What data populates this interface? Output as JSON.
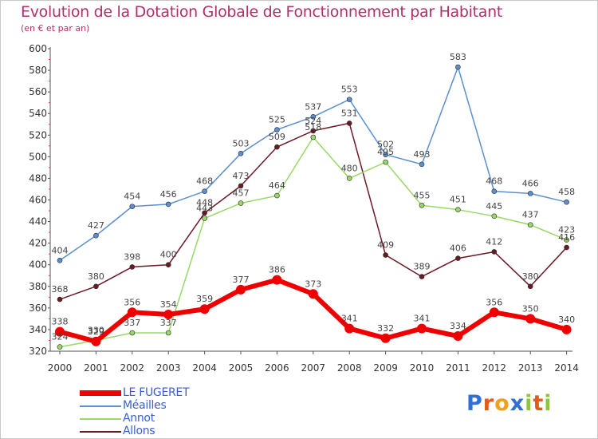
{
  "chart_data": {
    "type": "line",
    "title": "Evolution de la Dotation Globale de Fonctionnement par Habitant",
    "subtitle": "(en € et par an)",
    "x": [
      "2000",
      "2001",
      "2002",
      "2003",
      "2004",
      "2005",
      "2006",
      "2007",
      "2008",
      "2009",
      "2010",
      "2011",
      "2012",
      "2013",
      "2014"
    ],
    "yticks": [
      320,
      340,
      360,
      380,
      400,
      420,
      440,
      460,
      480,
      500,
      520,
      540,
      560,
      580,
      600
    ],
    "ylim": [
      320,
      600
    ],
    "grid": false,
    "legend_position": "bottom-left",
    "series": [
      {
        "name": "Allons",
        "color": "#6b1a24",
        "values": [
          368,
          380,
          398,
          400,
          448,
          473,
          509,
          524,
          531,
          409,
          389,
          406,
          412,
          380,
          416
        ],
        "labels": [
          "368",
          "380",
          "398",
          "400",
          "448",
          "473",
          "509",
          "524",
          "531",
          "409",
          "389",
          "406",
          "412",
          "380",
          "416"
        ]
      },
      {
        "name": "Annot",
        "color": "#99d866",
        "values": [
          324,
          330,
          337,
          337,
          443,
          457,
          464,
          518,
          480,
          495,
          455,
          451,
          445,
          437,
          423
        ],
        "labels": [
          "324",
          "330",
          "337",
          "337",
          "443",
          "457",
          "464",
          "518",
          "480",
          "495",
          "455",
          "451",
          "445",
          "437",
          "423"
        ]
      },
      {
        "name": "Méailles",
        "color": "#5b8fcf",
        "values": [
          404,
          427,
          454,
          456,
          468,
          503,
          525,
          537,
          553,
          502,
          493,
          583,
          468,
          466,
          458
        ],
        "labels": [
          "404",
          "427",
          "454",
          "456",
          "468",
          "503",
          "525",
          "537",
          "553",
          "502",
          "493",
          "583",
          "468",
          "466",
          "458"
        ]
      },
      {
        "name": "LE FUGERET",
        "color": "#ee0000",
        "values": [
          338,
          329,
          356,
          354,
          359,
          377,
          386,
          373,
          341,
          332,
          341,
          334,
          356,
          350,
          340
        ],
        "labels": [
          "338",
          "329",
          "356",
          "354",
          "359",
          "377",
          "386",
          "373",
          "341",
          "332",
          "341",
          "334",
          "356",
          "350",
          "340"
        ]
      }
    ],
    "legend": [
      "LE FUGERET",
      "Méailles",
      "Annot",
      "Allons"
    ]
  },
  "brand": {
    "text": "Proxiti",
    "letter_colors": [
      "#2f6fd6",
      "#e25a1c",
      "#f0a020",
      "#2f6fd6",
      "#8cc63f",
      "#e25a1c",
      "#8cc63f"
    ]
  }
}
